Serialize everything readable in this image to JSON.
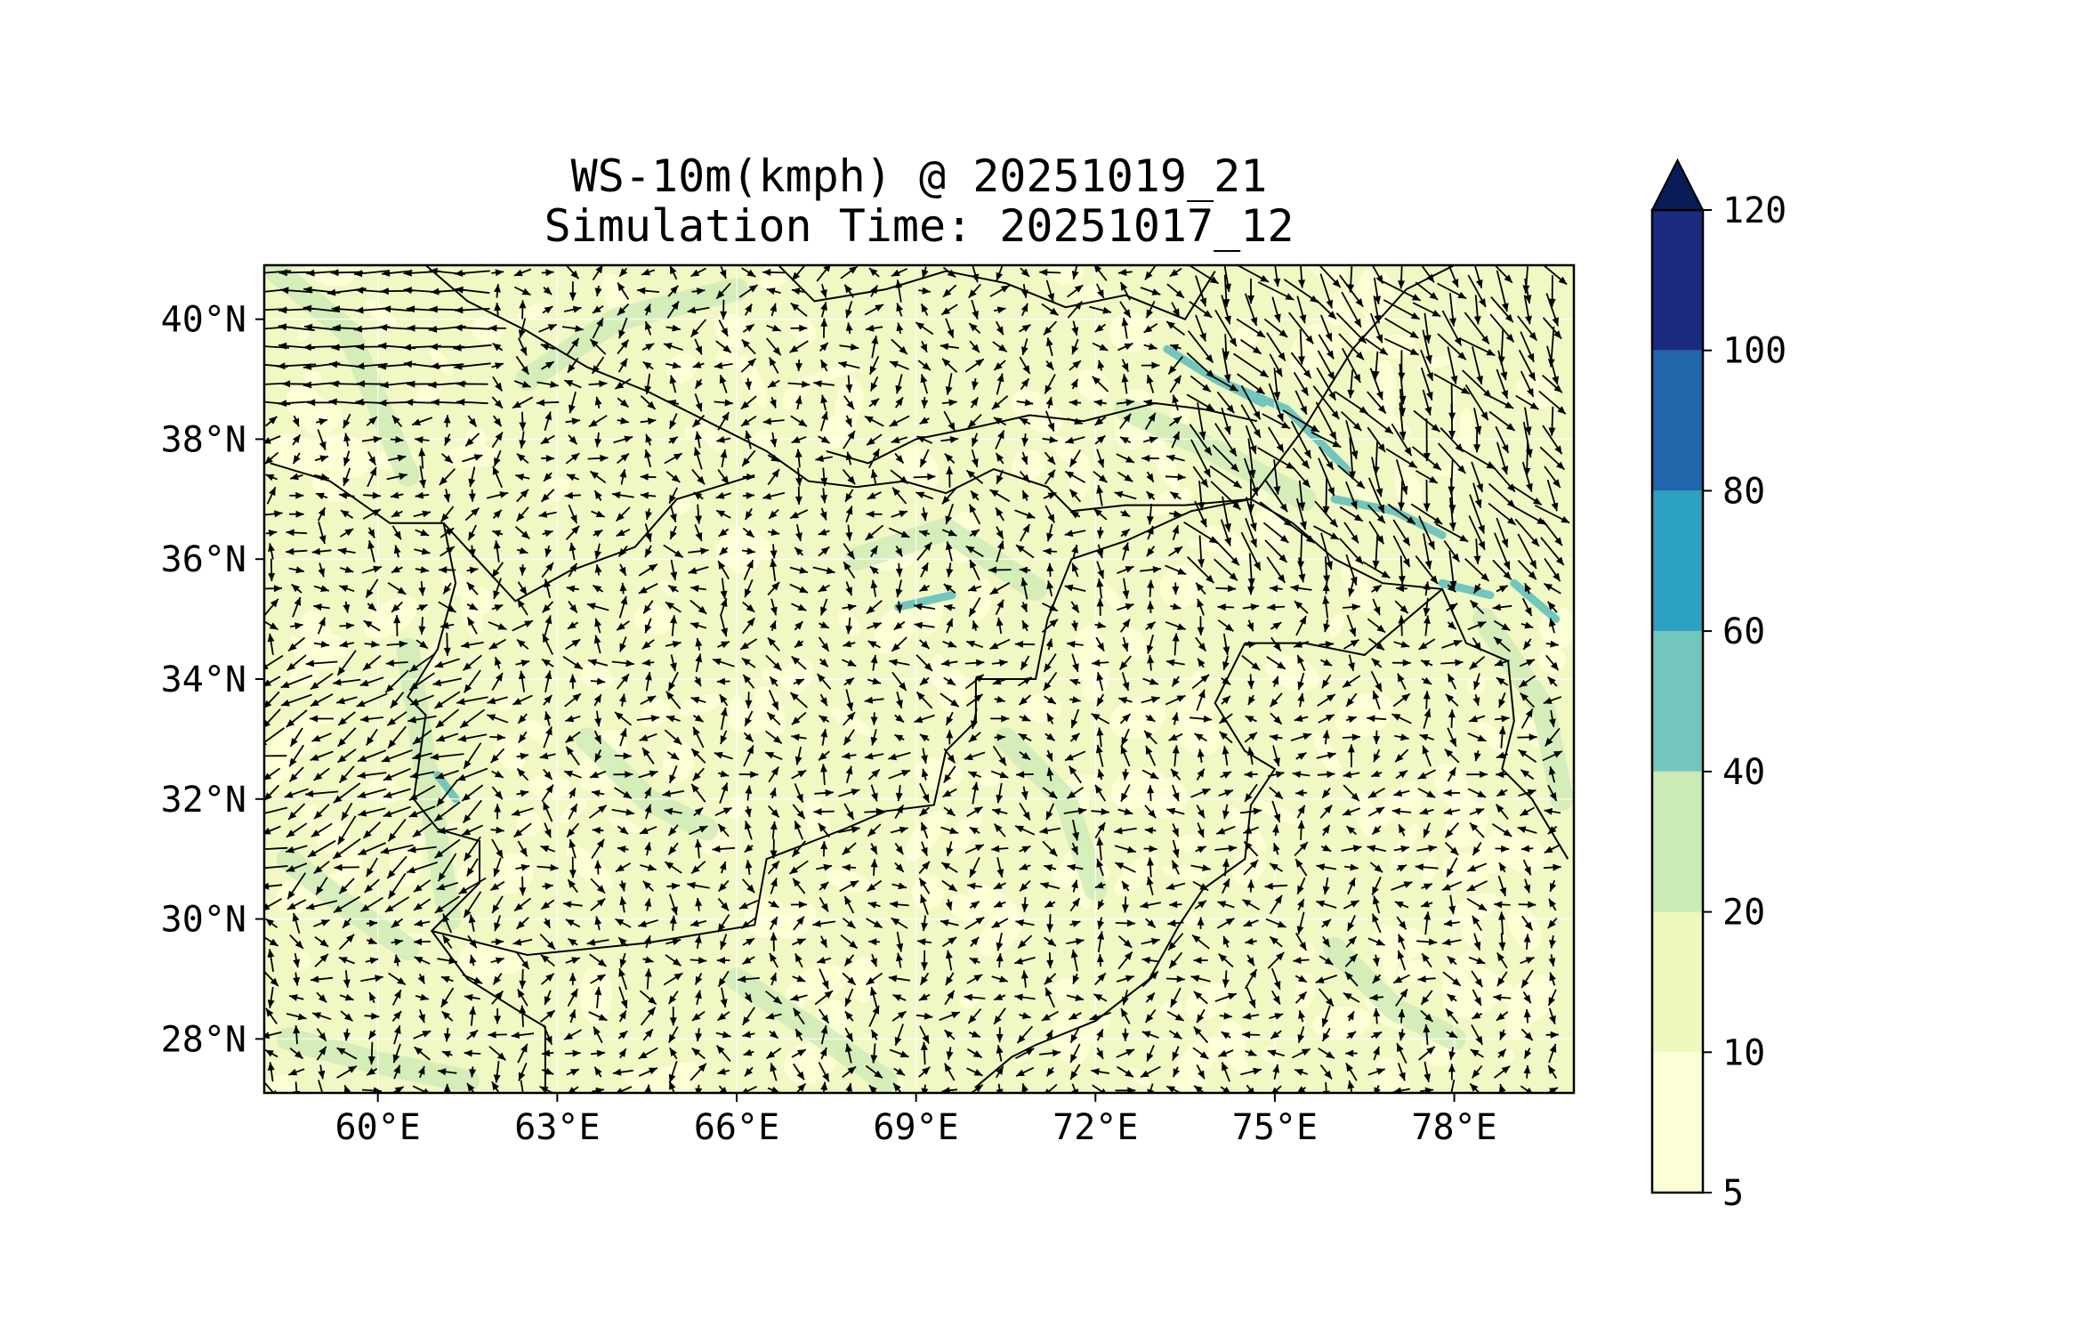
{
  "title": {
    "line1": "WS-10m(kmph) @ 20251019_21",
    "line2": "Simulation Time: 20251017_12"
  },
  "map": {
    "lon_range": [
      58.1,
      80.0
    ],
    "lat_range": [
      27.1,
      40.9
    ],
    "lon_ticks": [
      {
        "value": 60,
        "label": "60°E"
      },
      {
        "value": 63,
        "label": "63°E"
      },
      {
        "value": 66,
        "label": "66°E"
      },
      {
        "value": 69,
        "label": "69°E"
      },
      {
        "value": 72,
        "label": "72°E"
      },
      {
        "value": 75,
        "label": "75°E"
      },
      {
        "value": 78,
        "label": "78°E"
      }
    ],
    "lat_ticks": [
      {
        "value": 40,
        "label": "40°N"
      },
      {
        "value": 38,
        "label": "38°N"
      },
      {
        "value": 36,
        "label": "36°N"
      },
      {
        "value": 34,
        "label": "34°N"
      },
      {
        "value": 32,
        "label": "32°N"
      },
      {
        "value": 30,
        "label": "30°N"
      },
      {
        "value": 28,
        "label": "28°N"
      }
    ],
    "background_color": "#f1f8c4",
    "gridlines": true
  },
  "colorbar": {
    "levels": [
      "5",
      "10",
      "20",
      "40",
      "60",
      "80",
      "100",
      "120"
    ],
    "colors": [
      "#fdfed6",
      "#eff9bd",
      "#cbeab4",
      "#73c6bd",
      "#2ca1c2",
      "#2165ab",
      "#1b2b80",
      "#081d58"
    ],
    "extend": "max"
  }
}
